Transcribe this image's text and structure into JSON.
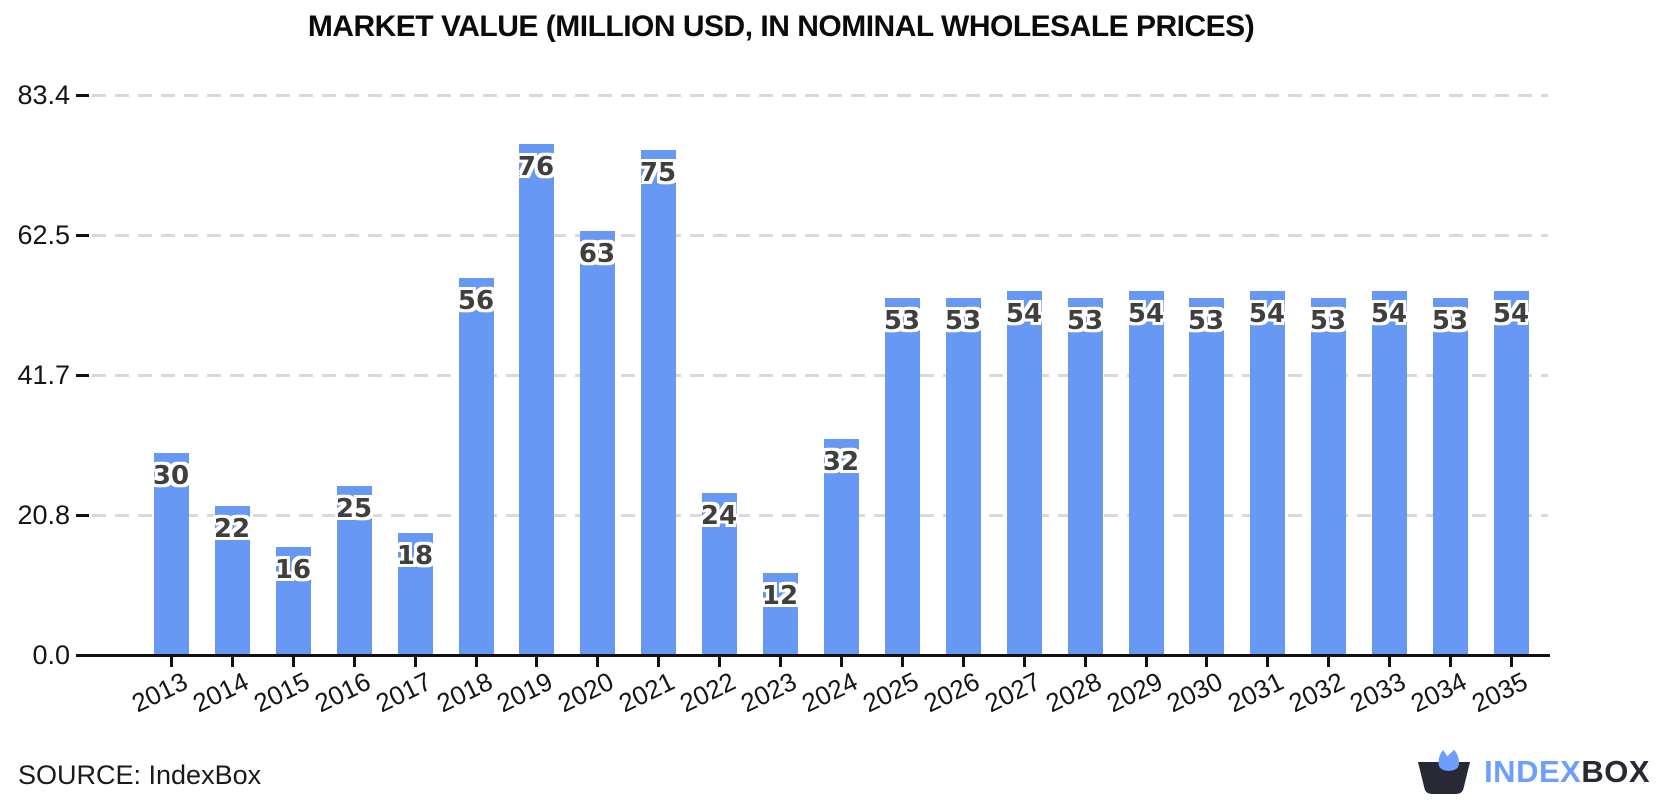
{
  "title": "MARKET VALUE (MILLION USD, IN NOMINAL WHOLESALE PRICES)",
  "source_note": "SOURCE: IndexBox",
  "logo": {
    "part1": "INDEX",
    "part2": "BOX"
  },
  "colors": {
    "bar": "#6798F4",
    "grid": "#D9D9D9",
    "axis": "#111111",
    "bar_label": "#3F3F3F",
    "brand_blue": "#6C9FFF",
    "brand_dark": "#272934",
    "background": "#FFFFFF"
  },
  "chart_data": {
    "type": "bar",
    "title": "MARKET VALUE (MILLION USD, IN NOMINAL WHOLESALE PRICES)",
    "categories": [
      "2013",
      "2014",
      "2015",
      "2016",
      "2017",
      "2018",
      "2019",
      "2020",
      "2021",
      "2022",
      "2023",
      "2024",
      "2025",
      "2026",
      "2027",
      "2028",
      "2029",
      "2030",
      "2031",
      "2032",
      "2033",
      "2034",
      "2035"
    ],
    "values": [
      30,
      22,
      16,
      25,
      18,
      56,
      76,
      63,
      75,
      24,
      12,
      32,
      53,
      53,
      54,
      53,
      54,
      53,
      54,
      53,
      54,
      53,
      54
    ],
    "bar_value_labels": [
      "30",
      "22",
      "16",
      "25",
      "18",
      "56",
      "76",
      "63",
      "75",
      "24",
      "12",
      "32",
      "53",
      "53",
      "54",
      "53",
      "54",
      "53",
      "54",
      "53",
      "54",
      "53",
      "54"
    ],
    "xlabel": "",
    "ylabel": "",
    "yticks": [
      {
        "value": 0,
        "label": "0.0"
      },
      {
        "value": 20.8,
        "label": "20.8"
      },
      {
        "value": 41.7,
        "label": "41.7"
      },
      {
        "value": 62.5,
        "label": "62.5"
      },
      {
        "value": 83.4,
        "label": "83.4"
      }
    ],
    "ylim": [
      0,
      83.4
    ],
    "grid": "horizontal-dashed",
    "legend": "none"
  }
}
